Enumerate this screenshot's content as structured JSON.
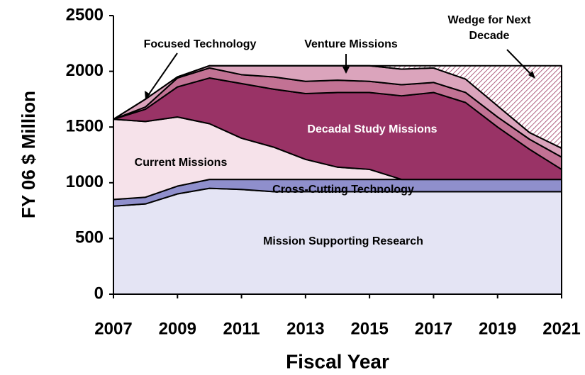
{
  "chart_data": {
    "type": "stacked_area",
    "x_label": "Fiscal Year",
    "y_label": "FY 06 $ Million",
    "x": [
      2007,
      2008,
      2009,
      2010,
      2011,
      2012,
      2013,
      2014,
      2015,
      2016,
      2017,
      2018,
      2019,
      2020,
      2021
    ],
    "xlim": [
      2007,
      2021
    ],
    "xticks": [
      2007,
      2009,
      2011,
      2013,
      2015,
      2017,
      2019,
      2021
    ],
    "ylim": [
      0,
      2500
    ],
    "yticks": [
      0,
      500,
      1000,
      1500,
      2000,
      2500
    ],
    "series": [
      {
        "name": "Mission Supporting Research",
        "color": "#e4e4f4",
        "values": [
          790,
          810,
          900,
          950,
          940,
          920,
          920,
          920,
          920,
          920,
          920,
          920,
          920,
          920,
          920
        ]
      },
      {
        "name": "Cross-Cutting Technology",
        "color": "#8f8fcc",
        "values": [
          60,
          60,
          70,
          80,
          90,
          110,
          110,
          110,
          110,
          110,
          110,
          110,
          110,
          110,
          110
        ]
      },
      {
        "name": "Current Missions",
        "color": "#f6e2ea",
        "values": [
          720,
          680,
          620,
          500,
          370,
          290,
          180,
          110,
          90,
          0,
          0,
          0,
          0,
          0,
          0
        ]
      },
      {
        "name": "Decadal Study Missions",
        "color": "#993366",
        "values": [
          0,
          110,
          270,
          410,
          490,
          520,
          590,
          670,
          690,
          750,
          780,
          690,
          470,
          270,
          90
        ]
      },
      {
        "name": "Focused Technology",
        "color": "#c27294",
        "values": [
          0,
          20,
          80,
          90,
          80,
          110,
          110,
          110,
          100,
          100,
          90,
          90,
          90,
          90,
          110
        ]
      },
      {
        "name": "Venture Missions",
        "color": "#dba4bc",
        "values": [
          0,
          70,
          10,
          20,
          80,
          100,
          140,
          130,
          140,
          140,
          130,
          120,
          100,
          60,
          80
        ]
      },
      {
        "name": "Wedge for Next Decade",
        "color": "#b06080",
        "values": [
          0,
          0,
          0,
          0,
          0,
          0,
          0,
          0,
          0,
          30,
          20,
          120,
          360,
          600,
          740
        ]
      }
    ]
  }
}
